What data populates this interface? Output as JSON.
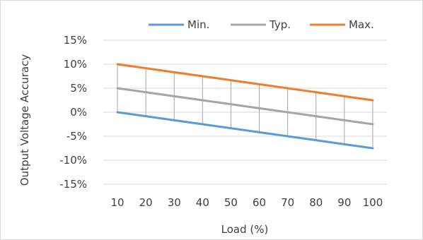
{
  "chart_data": {
    "type": "line",
    "x": [
      10,
      20,
      30,
      40,
      50,
      60,
      70,
      80,
      90,
      100
    ],
    "series": [
      {
        "name": "Min.",
        "color": "#5b9bd5",
        "values": [
          0,
          -0.8333,
          -1.6667,
          -2.5,
          -3.3333,
          -4.1667,
          -5,
          -5.8333,
          -6.6667,
          -7.5
        ]
      },
      {
        "name": "Typ.",
        "color": "#a5a5a5",
        "values": [
          5,
          4.1667,
          3.3333,
          2.5,
          1.6667,
          0.8333,
          0,
          -0.8333,
          -1.6667,
          -2.5
        ]
      },
      {
        "name": "Max.",
        "color": "#ed7d31",
        "values": [
          10,
          9.1667,
          8.3333,
          7.5,
          6.6667,
          5.8333,
          5,
          4.1667,
          3.3333,
          2.5
        ]
      }
    ],
    "xlabel": "Load (%)",
    "ylabel": "Output Voltage Accuracy",
    "ylim": [
      -15,
      15
    ],
    "yticks": [
      15,
      10,
      5,
      0,
      -5,
      -10,
      -15
    ],
    "ytick_labels": [
      "15%",
      "10%",
      "5%",
      "0%",
      "-5%",
      "-10%",
      "-15%"
    ],
    "xtick_labels": [
      "10",
      "20",
      "30",
      "40",
      "50",
      "60",
      "70",
      "80",
      "90",
      "100"
    ],
    "high_low_lines": true,
    "grid": true,
    "legend_position": "top"
  }
}
